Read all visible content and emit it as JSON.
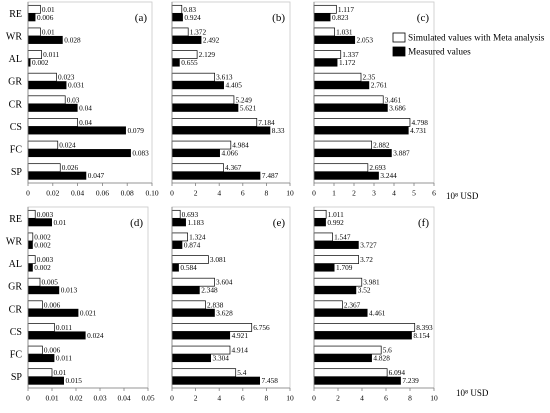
{
  "chart_data": {
    "type": "bar",
    "orientation": "horizontal",
    "categories": [
      "RE",
      "WR",
      "AL",
      "GR",
      "CR",
      "CS",
      "FC",
      "SP"
    ],
    "series": [
      {
        "name": "Simulated values with Meta analysis",
        "color": "#ffffff"
      },
      {
        "name": "Measured values",
        "color": "#000000"
      }
    ],
    "xlabel": "10⁸ USD",
    "legend_position": "top-right",
    "grid": false,
    "panels": [
      {
        "label": "(a)",
        "xlim": [
          0,
          0.1
        ],
        "ticks": [
          "0",
          "0.02",
          "0.04",
          "0.06",
          "0.08",
          "0.10"
        ],
        "series": [
          {
            "values": [
              0.01,
              0.01,
              0.011,
              0.023,
              0.03,
              0.04,
              0.024,
              0.026
            ]
          },
          {
            "values": [
              0.006,
              0.028,
              0.002,
              0.031,
              0.04,
              0.079,
              0.083,
              0.047
            ]
          }
        ]
      },
      {
        "label": "(b)",
        "xlim": [
          0,
          10
        ],
        "ticks": [
          "0",
          "2",
          "4",
          "6",
          "8",
          "10"
        ],
        "series": [
          {
            "values": [
              0.83,
              1.372,
              2.129,
              3.613,
              5.249,
              7.184,
              4.984,
              4.367
            ]
          },
          {
            "values": [
              0.924,
              2.492,
              0.655,
              4.405,
              5.621,
              8.33,
              4.066,
              7.487
            ]
          }
        ]
      },
      {
        "label": "(c)",
        "xlim": [
          0,
          6
        ],
        "ticks": [
          "0",
          "1",
          "2",
          "3",
          "4",
          "5",
          "6"
        ],
        "series": [
          {
            "values": [
              1.117,
              1.031,
              1.337,
              2.35,
              3.461,
              4.798,
              2.882,
              2.693
            ]
          },
          {
            "values": [
              0.823,
              2.053,
              1.172,
              2.761,
              3.686,
              4.731,
              3.887,
              3.244
            ]
          }
        ]
      },
      {
        "label": "(d)",
        "xlim": [
          0,
          0.05
        ],
        "ticks": [
          "0",
          "0.01",
          "0.02",
          "0.03",
          "0.04",
          "0.05"
        ],
        "series": [
          {
            "values": [
              0.003,
              0.002,
              0.003,
              0.005,
              0.006,
              0.011,
              0.006,
              0.01
            ]
          },
          {
            "values": [
              0.01,
              0.002,
              0.002,
              0.013,
              0.021,
              0.024,
              0.011,
              0.015
            ]
          }
        ]
      },
      {
        "label": "(e)",
        "xlim": [
          0,
          10
        ],
        "ticks": [
          "0",
          "2",
          "4",
          "6",
          "8",
          "10"
        ],
        "series": [
          {
            "values": [
              0.693,
              1.324,
              3.081,
              3.604,
              2.838,
              6.756,
              4.914,
              5.4
            ]
          },
          {
            "values": [
              1.183,
              0.874,
              0.584,
              2.348,
              3.628,
              4.921,
              3.304,
              7.458
            ]
          }
        ]
      },
      {
        "label": "(f)",
        "xlim": [
          0,
          10
        ],
        "ticks": [
          "0",
          "2",
          "4",
          "6",
          "8",
          "10"
        ],
        "series": [
          {
            "values": [
              1.011,
              1.547,
              3.72,
              3.981,
              2.367,
              8.393,
              5.6,
              6.094
            ]
          },
          {
            "values": [
              0.992,
              3.727,
              1.709,
              3.52,
              4.461,
              8.154,
              4.828,
              7.239
            ]
          }
        ]
      }
    ]
  }
}
